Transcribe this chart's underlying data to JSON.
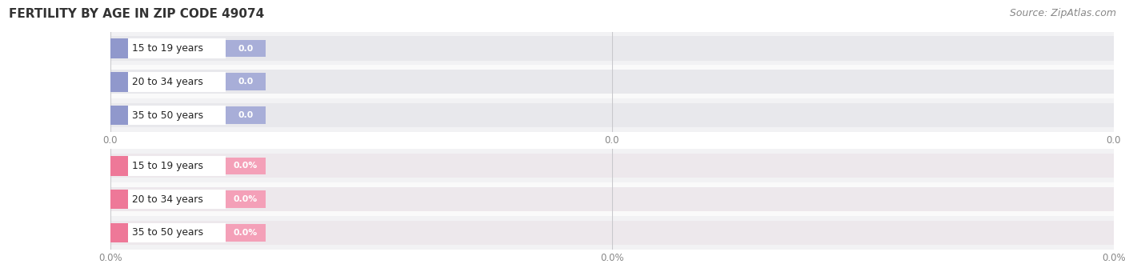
{
  "title": "FERTILITY BY AGE IN ZIP CODE 49074",
  "source": "Source: ZipAtlas.com",
  "categories": [
    "15 to 19 years",
    "20 to 34 years",
    "35 to 50 years"
  ],
  "group1_values": [
    0.0,
    0.0,
    0.0
  ],
  "group1_labels": [
    "0.0",
    "0.0",
    "0.0"
  ],
  "group2_values": [
    0.0,
    0.0,
    0.0
  ],
  "group2_labels": [
    "0.0%",
    "0.0%",
    "0.0%"
  ],
  "group1_color": "#a8aed8",
  "group1_circle_color": "#9098cc",
  "group2_color": "#f4a0b8",
  "group2_circle_color": "#ee7898",
  "bar_bg_color": "#e8e8ec",
  "bar_bg_color2": "#ede8ec",
  "row_bg_odd": "#f2f2f4",
  "row_bg_even": "#fafafa",
  "title_fontsize": 11,
  "label_fontsize": 9.0,
  "tick_fontsize": 8.5,
  "source_fontsize": 9,
  "background_color": "#ffffff",
  "separator_color": "#c8c8cc",
  "title_color": "#333333",
  "tick_color": "#888888",
  "source_color": "#888888",
  "xtick_positions": [
    0.0,
    0.5,
    1.0
  ],
  "xtick_labels1": [
    "0.0",
    "0.0",
    "0.0"
  ],
  "xtick_labels2": [
    "0.0%",
    "0.0%",
    "0.0%"
  ]
}
